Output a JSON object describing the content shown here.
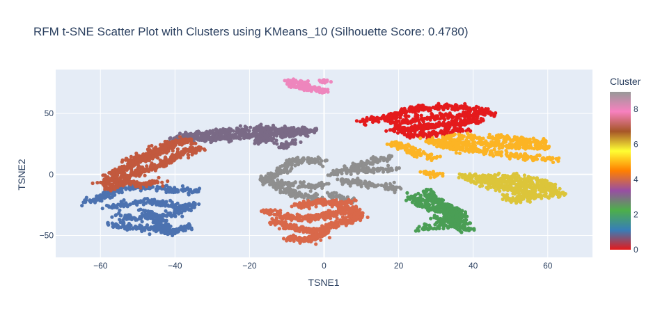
{
  "chart_data": {
    "type": "scatter",
    "title": "RFM t-SNE Scatter Plot with Clusters using KMeans_10 (Silhouette Score: 0.4780)",
    "xlabel": "TSNE1",
    "ylabel": "TSNE2",
    "xlim": [
      -72,
      72
    ],
    "ylim": [
      -68,
      86
    ],
    "x_ticks": [
      -60,
      -40,
      -20,
      0,
      20,
      40,
      60
    ],
    "x_tick_labels": [
      "−60",
      "−40",
      "−20",
      "0",
      "20",
      "40",
      "60"
    ],
    "y_ticks": [
      -50,
      0,
      50
    ],
    "y_tick_labels": [
      "−50",
      "0",
      "50"
    ],
    "grid": true,
    "colorbar": {
      "title": "Cluster",
      "range": [
        0,
        9
      ],
      "ticks": [
        0,
        2,
        4,
        6,
        8
      ],
      "tick_labels": [
        "0",
        "2",
        "4",
        "6",
        "8"
      ],
      "colors": [
        "#e41a1c",
        "#377eb8",
        "#4daf4a",
        "#984ea3",
        "#ff7f00",
        "#ffff33",
        "#a65628",
        "#f781bf",
        "#999999"
      ]
    },
    "plot_background": "#e5ecf6",
    "clusters": [
      {
        "cluster": 0,
        "color": "#e41a1c",
        "points": 700,
        "paths": [
          [
            [
              10,
              44
            ],
            [
              16,
              45
            ],
            [
              20,
              49
            ],
            [
              24,
              53
            ],
            [
              30,
              55
            ],
            [
              36,
              55
            ],
            [
              44,
              52
            ]
          ],
          [
            [
              18,
              41
            ],
            [
              24,
              44
            ],
            [
              30,
              47
            ],
            [
              38,
              49
            ],
            [
              45,
              50
            ]
          ],
          [
            [
              18,
              36
            ],
            [
              24,
              38
            ],
            [
              30,
              40
            ],
            [
              36,
              42
            ],
            [
              42,
              44
            ]
          ],
          [
            [
              22,
              32
            ],
            [
              28,
              33
            ],
            [
              34,
              35
            ],
            [
              38,
              37
            ]
          ]
        ],
        "spread": 1.5
      },
      {
        "cluster": 1,
        "color": "#4c72b0",
        "points": 700,
        "paths": [
          [
            [
              -64,
              -22
            ],
            [
              -60,
              -20
            ],
            [
              -56,
              -12
            ],
            [
              -50,
              -10
            ],
            [
              -44,
              -12
            ],
            [
              -38,
              -13
            ],
            [
              -34,
              -14
            ]
          ],
          [
            [
              -58,
              -27
            ],
            [
              -52,
              -24
            ],
            [
              -46,
              -22
            ],
            [
              -40,
              -26
            ],
            [
              -36,
              -27
            ]
          ],
          [
            [
              -56,
              -34
            ],
            [
              -50,
              -36
            ],
            [
              -44,
              -34
            ],
            [
              -40,
              -32
            ],
            [
              -35,
              -24
            ]
          ],
          [
            [
              -58,
              -40
            ],
            [
              -52,
              -43
            ],
            [
              -46,
              -45
            ],
            [
              -40,
              -46
            ],
            [
              -36,
              -42
            ]
          ],
          [
            [
              -48,
              -30
            ],
            [
              -44,
              -40
            ],
            [
              -42,
              -48
            ],
            [
              -38,
              -45
            ]
          ]
        ],
        "spread": 1.4
      },
      {
        "cluster": 2,
        "color": "#4a9e55",
        "points": 500,
        "paths": [
          [
            [
              23,
              -18
            ],
            [
              26,
              -22
            ],
            [
              29,
              -28
            ],
            [
              32,
              -30
            ],
            [
              35,
              -33
            ]
          ],
          [
            [
              27,
              -14
            ],
            [
              29,
              -20
            ],
            [
              31,
              -24
            ],
            [
              34,
              -27
            ],
            [
              37,
              -37
            ]
          ],
          [
            [
              25,
              -45
            ],
            [
              29,
              -43
            ],
            [
              33,
              -41
            ],
            [
              37,
              -43
            ],
            [
              39,
              -46
            ]
          ],
          [
            [
              30,
              -35
            ],
            [
              34,
              -38
            ],
            [
              38,
              -40
            ]
          ]
        ],
        "spread": 1.4
      },
      {
        "cluster": 3,
        "color": "#7a6a86",
        "points": 700,
        "paths": [
          [
            [
              -40,
              28
            ],
            [
              -36,
              32
            ],
            [
              -30,
              34
            ],
            [
              -24,
              36
            ],
            [
              -18,
              38
            ],
            [
              -12,
              37
            ],
            [
              -6,
              36
            ],
            [
              -2,
              36
            ]
          ],
          [
            [
              -36,
              30
            ],
            [
              -30,
              29
            ],
            [
              -24,
              31
            ],
            [
              -18,
              33
            ],
            [
              -12,
              33
            ],
            [
              -6,
              34
            ]
          ],
          [
            [
              -18,
              26
            ],
            [
              -16,
              30
            ],
            [
              -14,
              28
            ]
          ],
          [
            [
              -12,
              22
            ],
            [
              -10,
              24
            ],
            [
              -8,
              26
            ]
          ]
        ],
        "spread": 1.4
      },
      {
        "cluster": 4,
        "color": "#fcb424",
        "points": 700,
        "paths": [
          [
            [
              19,
              25
            ],
            [
              22,
              22
            ],
            [
              25,
              17
            ],
            [
              28,
              15
            ],
            [
              30,
              14
            ]
          ],
          [
            [
              28,
              28
            ],
            [
              32,
              24
            ],
            [
              36,
              21
            ],
            [
              40,
              20
            ],
            [
              45,
              18
            ],
            [
              50,
              16
            ],
            [
              55,
              14
            ],
            [
              62,
              12
            ]
          ],
          [
            [
              30,
              24
            ],
            [
              36,
              26
            ],
            [
              42,
              25
            ],
            [
              48,
              24
            ],
            [
              55,
              23
            ],
            [
              60,
              22
            ]
          ],
          [
            [
              32,
              30
            ],
            [
              40,
              31
            ],
            [
              48,
              30
            ],
            [
              56,
              27
            ],
            [
              60,
              26
            ]
          ],
          [
            [
              27,
              1
            ],
            [
              29,
              0
            ],
            [
              31,
              0
            ]
          ]
        ],
        "spread": 1.4
      },
      {
        "cluster": 5,
        "color": "#dcc53a",
        "points": 600,
        "paths": [
          [
            [
              37,
              -1
            ],
            [
              42,
              -3
            ],
            [
              47,
              -5
            ],
            [
              52,
              -8
            ],
            [
              57,
              -11
            ],
            [
              61,
              -14
            ],
            [
              64,
              -17
            ]
          ],
          [
            [
              40,
              -5
            ],
            [
              45,
              -8
            ],
            [
              50,
              -12
            ],
            [
              55,
              -16
            ],
            [
              60,
              -18
            ]
          ],
          [
            [
              44,
              -3
            ],
            [
              50,
              -2
            ],
            [
              56,
              -4
            ],
            [
              60,
              -9
            ],
            [
              62,
              -13
            ]
          ],
          [
            [
              48,
              -18
            ],
            [
              52,
              -21
            ],
            [
              56,
              -17
            ]
          ]
        ],
        "spread": 1.5
      },
      {
        "cluster": 6,
        "color": "#c2593e",
        "points": 800,
        "paths": [
          [
            [
              -59,
              -8
            ],
            [
              -57,
              -3
            ],
            [
              -55,
              3
            ],
            [
              -52,
              8
            ],
            [
              -48,
              13
            ],
            [
              -44,
              20
            ],
            [
              -40,
              26
            ],
            [
              -36,
              28
            ]
          ],
          [
            [
              -55,
              -5
            ],
            [
              -52,
              0
            ],
            [
              -48,
              4
            ],
            [
              -44,
              8
            ],
            [
              -40,
              14
            ],
            [
              -36,
              20
            ],
            [
              -33,
              22
            ]
          ],
          [
            [
              -52,
              10
            ],
            [
              -48,
              16
            ],
            [
              -44,
              22
            ],
            [
              -40,
              24
            ]
          ],
          [
            [
              -58,
              -11
            ],
            [
              -54,
              -6
            ],
            [
              -48,
              -8
            ],
            [
              -44,
              -6
            ]
          ]
        ],
        "spread": 1.5
      },
      {
        "cluster": 7,
        "color": "#ee86bd",
        "points": 200,
        "paths": [
          [
            [
              -10,
              77
            ],
            [
              -8,
              76
            ],
            [
              -6,
              75
            ],
            [
              -4,
              72
            ],
            [
              -2,
              70
            ],
            [
              0,
              68
            ]
          ],
          [
            [
              -9,
              73
            ],
            [
              -7,
              72
            ],
            [
              -4,
              70
            ]
          ],
          [
            [
              0,
              76
            ]
          ]
        ],
        "spread": 1.0
      },
      {
        "cluster": 8,
        "color": "#8f8f8f",
        "points": 700,
        "paths": [
          [
            [
              -16,
              -4
            ],
            [
              -14,
              -2
            ],
            [
              -12,
              2
            ],
            [
              -10,
              6
            ],
            [
              -8,
              12
            ],
            [
              -4,
              12
            ],
            [
              0,
              10
            ]
          ],
          [
            [
              -16,
              -6
            ],
            [
              -12,
              -10
            ],
            [
              -8,
              -16
            ],
            [
              -4,
              -18
            ],
            [
              0,
              -22
            ]
          ],
          [
            [
              2,
              0
            ],
            [
              6,
              4
            ],
            [
              10,
              8
            ],
            [
              14,
              12
            ],
            [
              18,
              14
            ]
          ],
          [
            [
              4,
              -4
            ],
            [
              8,
              -6
            ],
            [
              12,
              -8
            ],
            [
              16,
              -9
            ],
            [
              20,
              -12
            ]
          ],
          [
            [
              6,
              2
            ],
            [
              10,
              4
            ],
            [
              15,
              4
            ],
            [
              19,
              5
            ]
          ],
          [
            [
              -12,
              -6
            ],
            [
              -8,
              -8
            ],
            [
              -4,
              -10
            ],
            [
              0,
              -8
            ]
          ],
          [
            [
              2,
              -16
            ],
            [
              4,
              -20
            ],
            [
              8,
              -22
            ]
          ]
        ],
        "spread": 1.4
      },
      {
        "cluster": 9,
        "color": "#d9684a",
        "points": 800,
        "paths": [
          [
            [
              -16,
              -30
            ],
            [
              -12,
              -33
            ],
            [
              -8,
              -36
            ],
            [
              -4,
              -36
            ],
            [
              0,
              -34
            ],
            [
              4,
              -30
            ],
            [
              8,
              -28
            ]
          ],
          [
            [
              -14,
              -38
            ],
            [
              -10,
              -42
            ],
            [
              -6,
              -45
            ],
            [
              -2,
              -46
            ],
            [
              2,
              -42
            ],
            [
              6,
              -38
            ],
            [
              10,
              -34
            ]
          ],
          [
            [
              -10,
              -52
            ],
            [
              -6,
              -54
            ],
            [
              -2,
              -52
            ],
            [
              0,
              -48
            ]
          ],
          [
            [
              -8,
              -26
            ],
            [
              -4,
              -24
            ],
            [
              0,
              -22
            ],
            [
              4,
              -24
            ],
            [
              8,
              -22
            ]
          ],
          [
            [
              6,
              -28
            ],
            [
              9,
              -32
            ],
            [
              9,
              -36
            ]
          ]
        ],
        "spread": 1.4
      }
    ]
  }
}
